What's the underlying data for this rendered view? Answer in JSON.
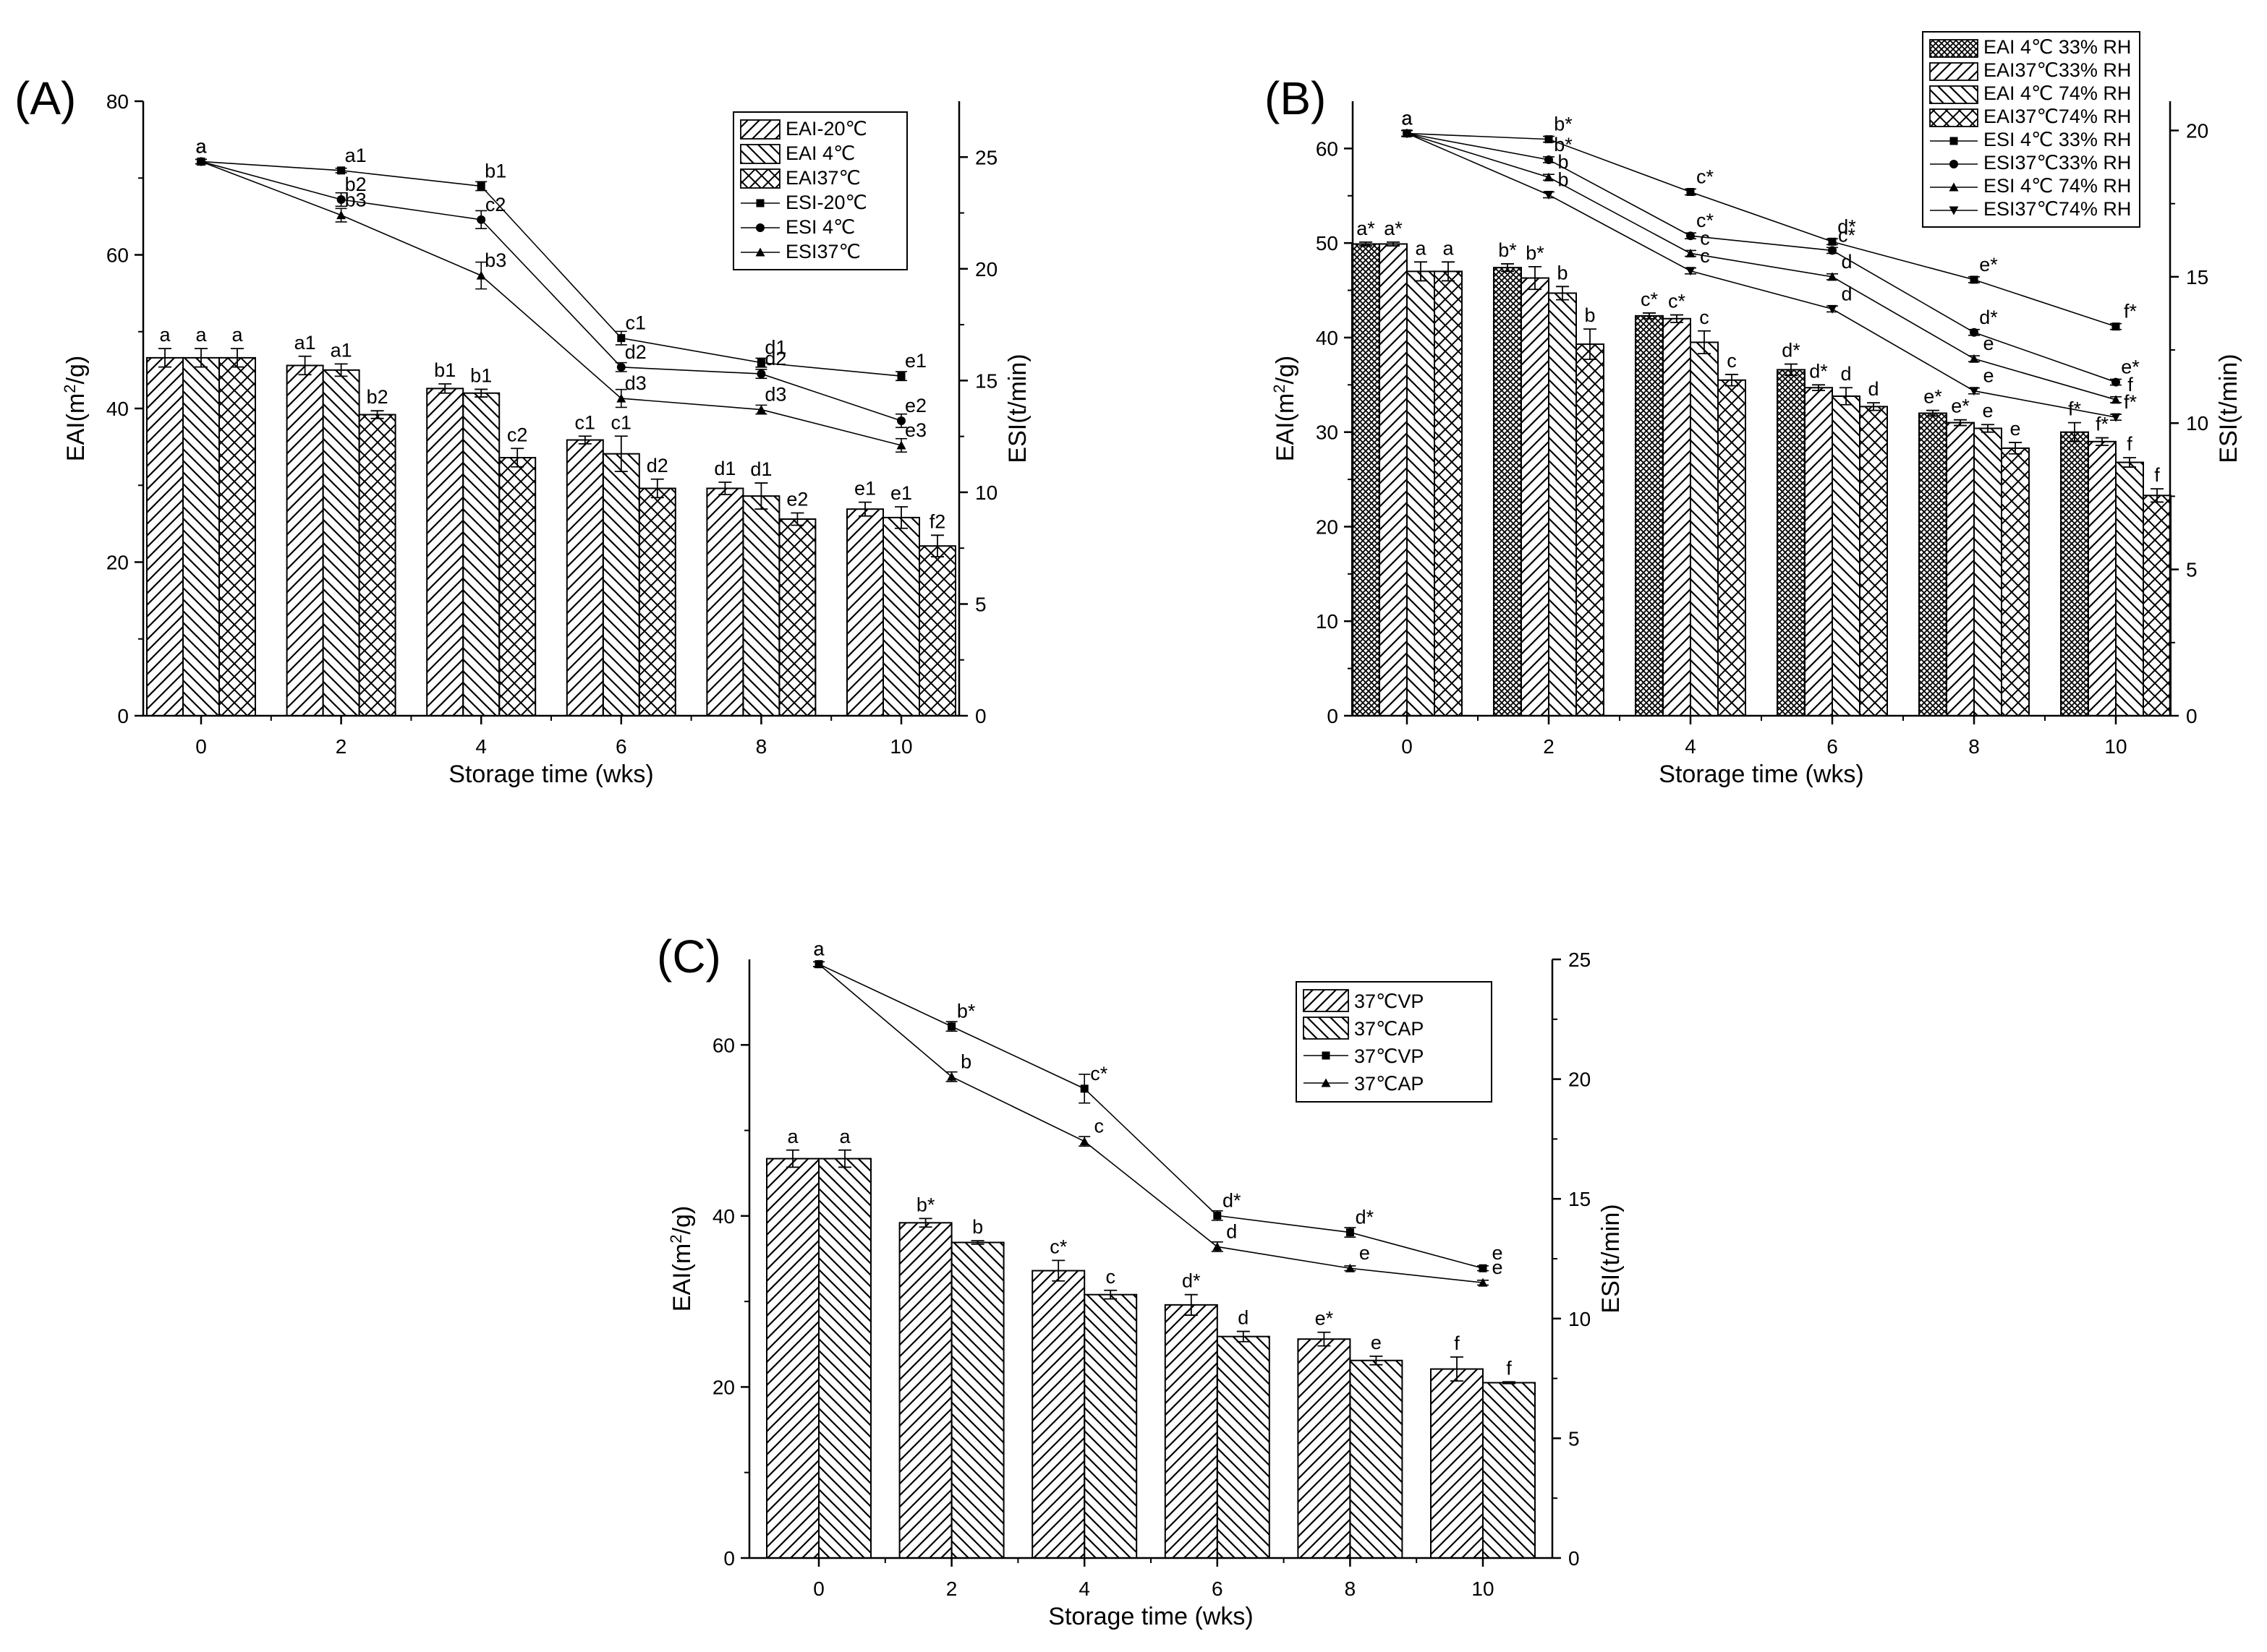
{
  "figure": {
    "background": "#ffffff",
    "ink": "#000000"
  },
  "chart_data": [
    {
      "id": "A",
      "panel_label": "(A)",
      "type": "bar+line",
      "categories": [
        "0",
        "2",
        "4",
        "6",
        "8",
        "10"
      ],
      "xlabel": "Storage time (wks)",
      "ylabel": "EAI(m²/g)",
      "ylabel_main": "EAI(m",
      "ylabel_sup": "2",
      "ylabel_tail": "/g)",
      "ylabel2": "ESI(t/min)",
      "ylim": [
        0,
        80
      ],
      "yticks": [
        0,
        20,
        40,
        60,
        80
      ],
      "y2lim": [
        0,
        27.5
      ],
      "y2ticks": [
        0,
        5,
        10,
        15,
        20,
        25
      ],
      "legend_position": "top-right",
      "bar_series": [
        {
          "name": "EAI-20℃",
          "pattern": "fwd",
          "values": [
            46.6,
            45.6,
            42.6,
            35.9,
            29.6,
            26.9
          ],
          "errors": [
            1.2,
            1.2,
            0.6,
            0.5,
            0.8,
            0.9
          ],
          "labels": [
            "a",
            "a1",
            "b1",
            "c1",
            "d1",
            "e1"
          ]
        },
        {
          "name": "EAI  4℃",
          "pattern": "back",
          "values": [
            46.6,
            45.0,
            42.0,
            34.1,
            28.6,
            25.8
          ],
          "errors": [
            1.2,
            0.8,
            0.5,
            2.3,
            1.7,
            1.4
          ],
          "labels": [
            "a",
            "a1",
            "b1",
            "c1",
            "d1",
            "e1"
          ]
        },
        {
          "name": "EAI37℃",
          "pattern": "cross",
          "values": [
            46.6,
            39.2,
            33.6,
            29.6,
            25.6,
            22.1
          ],
          "errors": [
            1.2,
            0.5,
            1.2,
            1.2,
            0.8,
            1.4
          ],
          "labels": [
            "a",
            "b2",
            "c2",
            "d2",
            "e2",
            "f2"
          ]
        }
      ],
      "line_series": [
        {
          "name": "ESI-20℃",
          "marker": "square",
          "values": [
            24.8,
            24.4,
            23.7,
            16.9,
            15.8,
            15.2
          ],
          "errors": [
            0.1,
            0.1,
            0.2,
            0.3,
            0.2,
            0.2
          ],
          "labels": [
            "a",
            "a1",
            "b1",
            "c1",
            "d1",
            "e1"
          ]
        },
        {
          "name": "ESI  4℃",
          "marker": "circle",
          "values": [
            24.8,
            23.1,
            22.2,
            15.6,
            15.3,
            13.2
          ],
          "errors": [
            0.1,
            0.3,
            0.4,
            0.2,
            0.2,
            0.3
          ],
          "labels": [
            "a",
            "b2",
            "c2",
            "d2",
            "d2",
            "e2"
          ]
        },
        {
          "name": "ESI37℃",
          "marker": "triangle",
          "values": [
            24.8,
            22.4,
            19.7,
            14.2,
            13.7,
            12.1
          ],
          "errors": [
            0.1,
            0.3,
            0.6,
            0.4,
            0.2,
            0.3
          ],
          "labels": [
            "a",
            "b3",
            "b3",
            "d3",
            "d3",
            "e3"
          ]
        }
      ]
    },
    {
      "id": "B",
      "panel_label": "(B)",
      "type": "bar+line",
      "categories": [
        "0",
        "2",
        "4",
        "6",
        "8",
        "10"
      ],
      "xlabel": "Storage time (wks)",
      "ylabel": "EAI(m²/g)",
      "ylabel_main": "EAI(m",
      "ylabel_sup": "2",
      "ylabel_tail": "/g)",
      "ylabel2": "ESI(t/min)",
      "ylim": [
        0,
        65
      ],
      "yticks": [
        0,
        10,
        20,
        30,
        40,
        50,
        60
      ],
      "y2lim": [
        0,
        21
      ],
      "y2ticks": [
        0,
        5,
        10,
        15,
        20
      ],
      "legend_position": "top-right",
      "bar_series": [
        {
          "name": "EAI 4℃ 33% RH",
          "pattern": "dense",
          "values": [
            49.9,
            47.4,
            42.3,
            36.6,
            32.0,
            30.0
          ],
          "errors": [
            0.2,
            0.4,
            0.3,
            0.6,
            0.3,
            1.0
          ],
          "labels": [
            "a*",
            "b*",
            "c*",
            "d*",
            "e*",
            "f*"
          ]
        },
        {
          "name": "EAI37℃33% RH",
          "pattern": "fwd",
          "values": [
            49.9,
            46.3,
            42.0,
            34.7,
            31.0,
            29.0
          ],
          "errors": [
            0.2,
            1.2,
            0.4,
            0.3,
            0.3,
            0.4
          ],
          "labels": [
            "a*",
            "b*",
            "c*",
            "d*",
            "e*",
            "f*"
          ]
        },
        {
          "name": "EAI 4℃ 74% RH",
          "pattern": "back",
          "values": [
            47.0,
            44.7,
            39.5,
            33.8,
            30.4,
            26.8
          ],
          "errors": [
            1.0,
            0.7,
            1.2,
            0.9,
            0.4,
            0.5
          ],
          "labels": [
            "a",
            "b",
            "c",
            "d",
            "e",
            "f"
          ]
        },
        {
          "name": "EAI37℃74% RH",
          "pattern": "cross",
          "values": [
            47.0,
            39.3,
            35.5,
            32.7,
            28.3,
            23.3
          ],
          "errors": [
            1.0,
            1.6,
            0.6,
            0.4,
            0.6,
            0.7
          ],
          "labels": [
            "a",
            "b",
            "c",
            "d",
            "e",
            "f"
          ]
        }
      ],
      "line_series": [
        {
          "name": "ESI 4℃ 33% RH",
          "marker": "square",
          "values": [
            19.9,
            19.7,
            17.9,
            16.2,
            14.9,
            13.3
          ],
          "errors": [
            0.1,
            0.1,
            0.1,
            0.1,
            0.1,
            0.1
          ],
          "labels": [
            "a",
            "b*",
            "c*",
            "d*",
            "e*",
            "f*"
          ]
        },
        {
          "name": "ESI37℃33% RH",
          "marker": "circle",
          "values": [
            19.9,
            19.0,
            16.4,
            15.9,
            13.1,
            11.4
          ],
          "errors": [
            0.1,
            0.1,
            0.1,
            0.1,
            0.1,
            0.1
          ],
          "labels": [
            "a",
            "b*",
            "c*",
            "c*",
            "d*",
            "e*"
          ]
        },
        {
          "name": "ESI 4℃ 74% RH",
          "marker": "triangle",
          "values": [
            19.9,
            18.4,
            15.8,
            15.0,
            12.2,
            10.8
          ],
          "errors": [
            0.1,
            0.1,
            0.1,
            0.1,
            0.1,
            0.1
          ],
          "labels": [
            "a",
            "b",
            "c",
            "d",
            "e",
            "f"
          ]
        },
        {
          "name": "ESI37℃74% RH",
          "marker": "triangle-down",
          "values": [
            19.9,
            17.8,
            15.2,
            13.9,
            11.1,
            10.2
          ],
          "errors": [
            0.1,
            0.1,
            0.1,
            0.1,
            0.1,
            0.1
          ],
          "labels": [
            "a",
            "b",
            "c",
            "d",
            "e",
            "f*"
          ]
        }
      ]
    },
    {
      "id": "C",
      "panel_label": "(C)",
      "type": "bar+line",
      "categories": [
        "0",
        "2",
        "4",
        "6",
        "8",
        "10"
      ],
      "xlabel": "Storage time (wks)",
      "ylabel": "EAI(m²/g)",
      "ylabel_main": "EAI(m",
      "ylabel_sup": "2",
      "ylabel_tail": "/g)",
      "ylabel2": "ESI(t/min)",
      "ylim": [
        0,
        70
      ],
      "yticks": [
        0,
        20,
        40,
        60
      ],
      "y2lim": [
        0,
        25
      ],
      "y2ticks": [
        0,
        5,
        10,
        15,
        20,
        25
      ],
      "legend_position": "top-right",
      "bar_series": [
        {
          "name": "37℃VP",
          "pattern": "fwd",
          "values": [
            46.7,
            39.2,
            33.6,
            29.6,
            25.6,
            22.1
          ],
          "errors": [
            1.0,
            0.5,
            1.2,
            1.2,
            0.8,
            1.4
          ],
          "labels": [
            "a",
            "b*",
            "c*",
            "d*",
            "e*",
            "f"
          ]
        },
        {
          "name": "37℃AP",
          "pattern": "back",
          "values": [
            46.7,
            36.9,
            30.8,
            25.9,
            23.1,
            20.5
          ],
          "errors": [
            1.0,
            0.2,
            0.5,
            0.6,
            0.5,
            0.1
          ],
          "labels": [
            "a",
            "b",
            "c",
            "d",
            "e",
            "f"
          ]
        }
      ],
      "line_series": [
        {
          "name": "37℃VP",
          "marker": "square",
          "values": [
            24.8,
            22.2,
            19.6,
            14.3,
            13.6,
            12.1
          ],
          "errors": [
            0.1,
            0.2,
            0.6,
            0.2,
            0.2,
            0.1
          ],
          "labels": [
            "a",
            "b*",
            "c*",
            "d*",
            "d*",
            "e"
          ]
        },
        {
          "name": "37℃AP",
          "marker": "triangle",
          "values": [
            24.8,
            20.1,
            17.4,
            13.0,
            12.1,
            11.5
          ],
          "errors": [
            0.1,
            0.2,
            0.2,
            0.2,
            0.1,
            0.1
          ],
          "labels": [
            "a",
            "b",
            "c",
            "d",
            "e",
            "e"
          ]
        }
      ]
    }
  ]
}
